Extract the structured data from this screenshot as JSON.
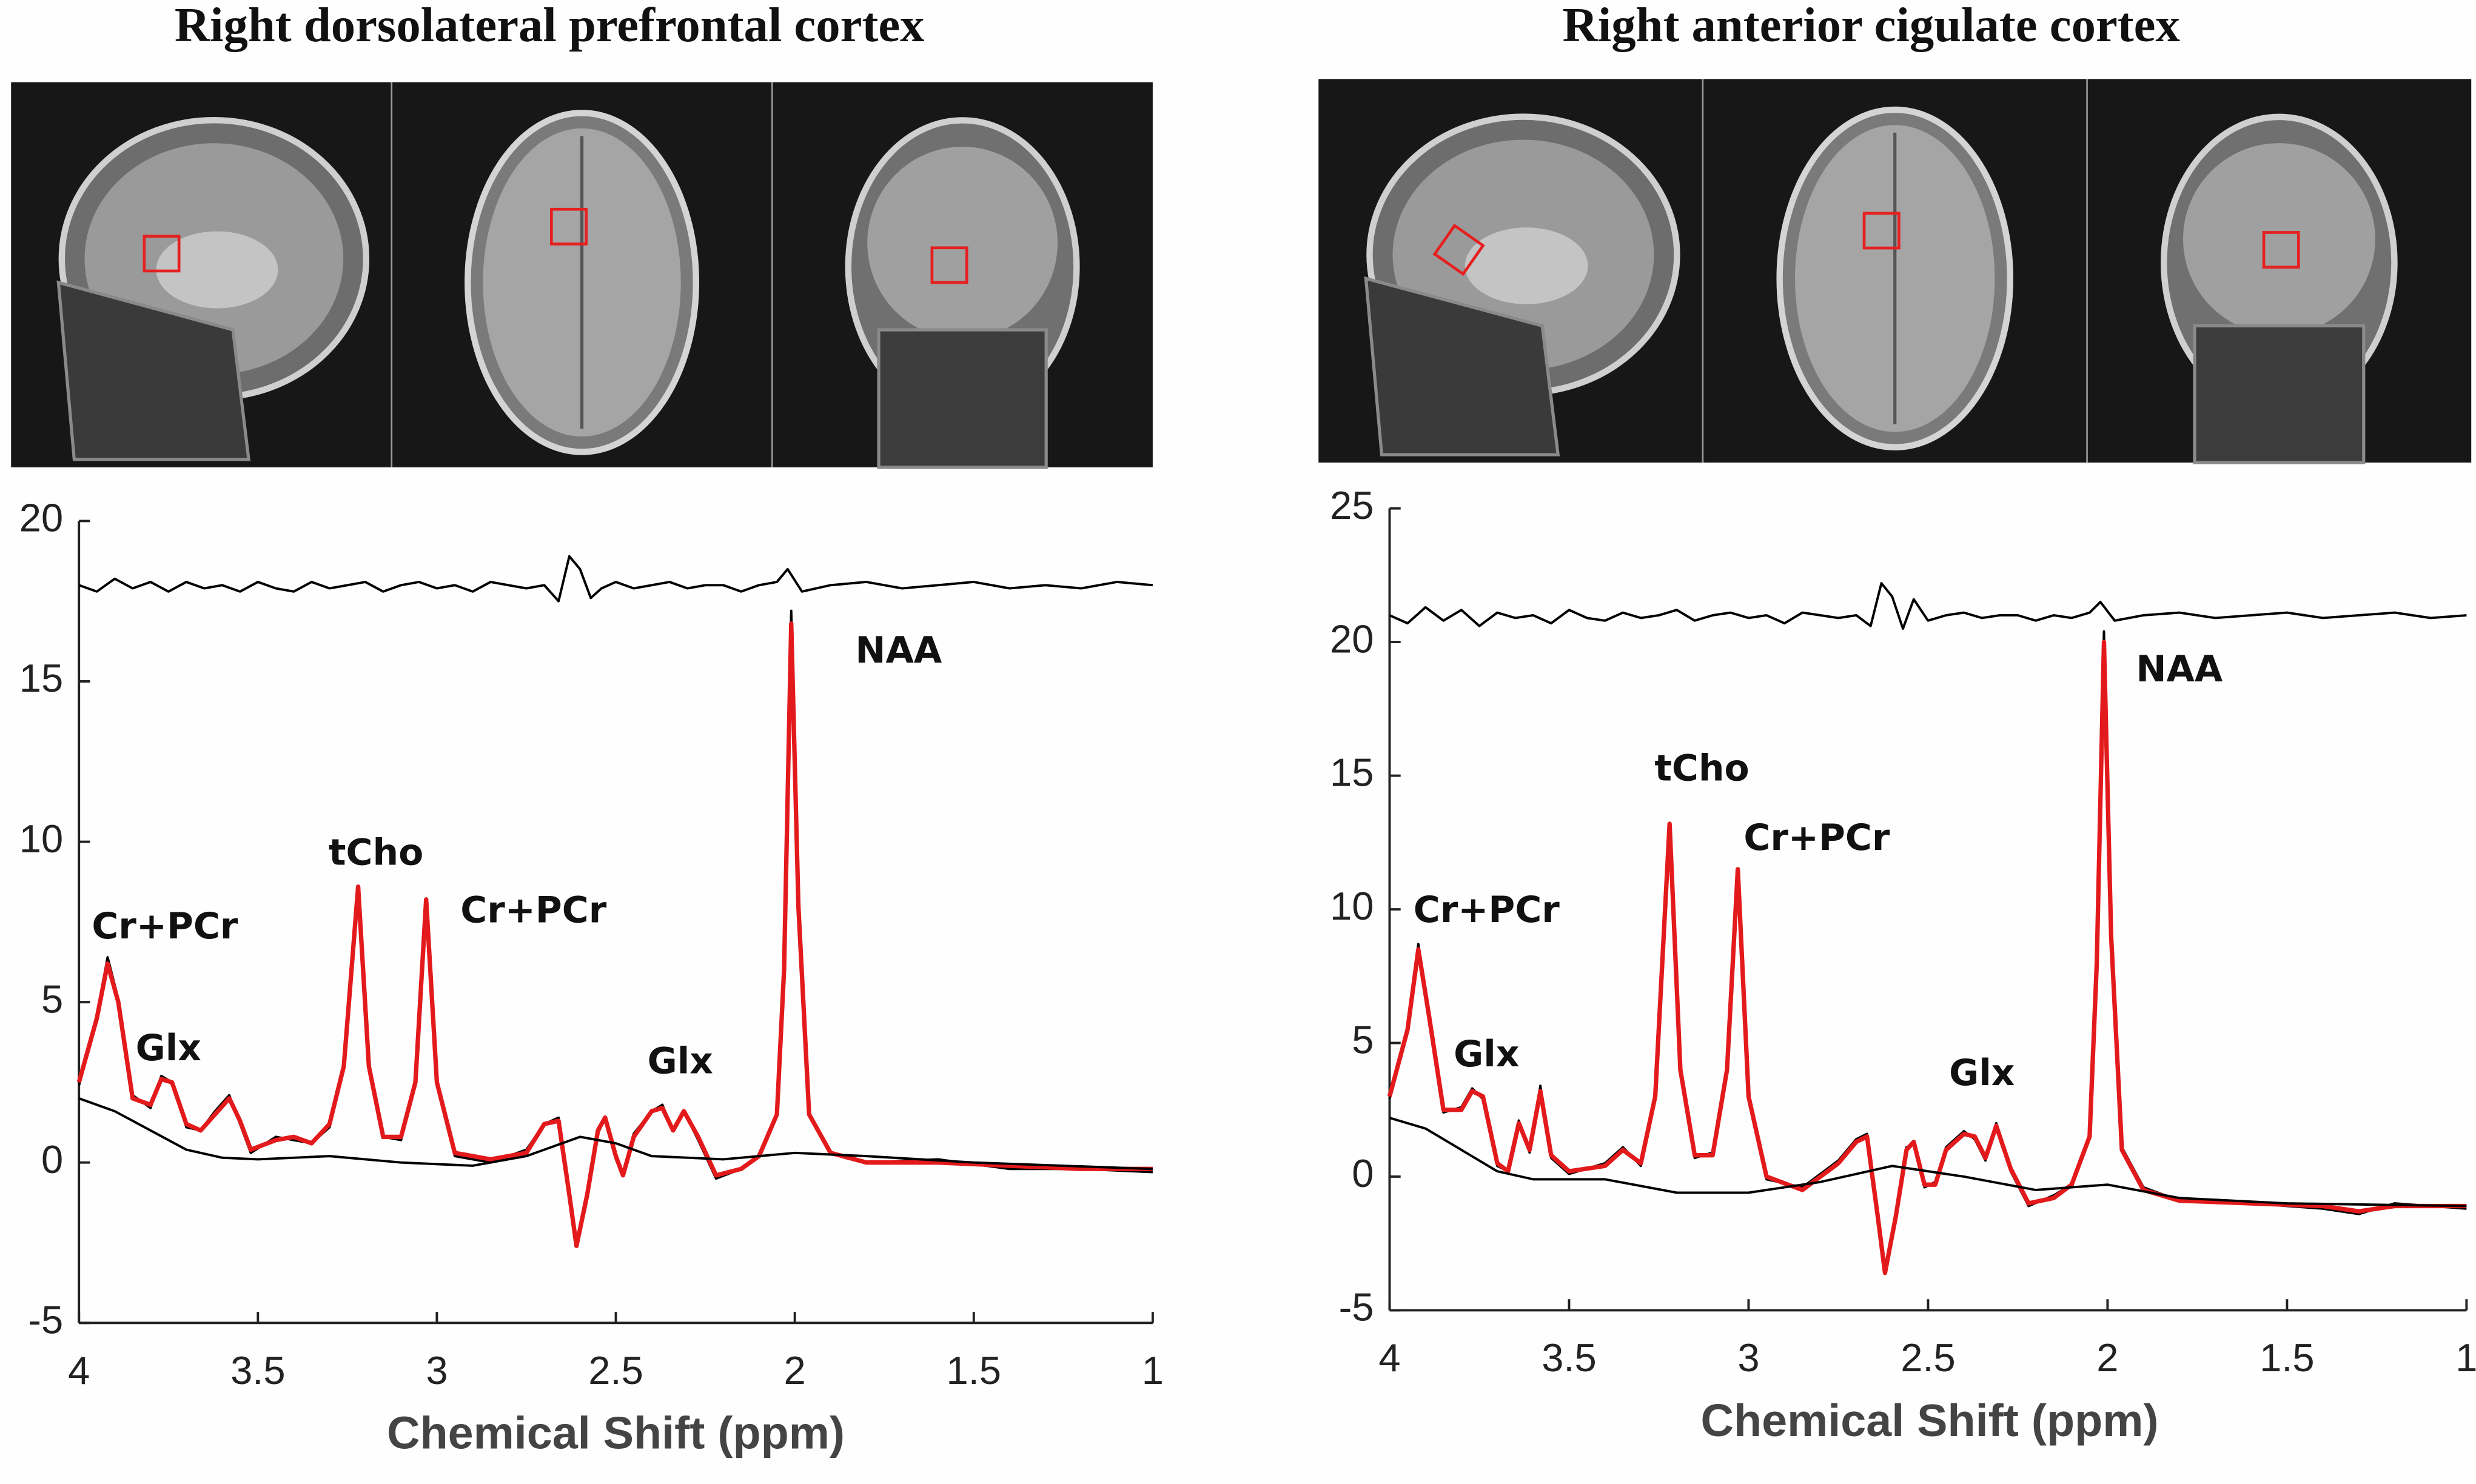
{
  "chart_data": [
    {
      "type": "line",
      "title": "Right dorsolateral prefrontal cortex",
      "xlabel": "Chemical Shift (ppm)",
      "xlim": [
        4,
        1
      ],
      "ylim": [
        -5,
        20
      ],
      "xticks": [
        4,
        3.5,
        3,
        2.5,
        2,
        1.5,
        1
      ],
      "yticks": [
        -5,
        0,
        5,
        10,
        15,
        20
      ],
      "series": [
        {
          "color": "#000000",
          "x": [
            4.0,
            3.95,
            3.92,
            3.89,
            3.85,
            3.8,
            3.77,
            3.74,
            3.7,
            3.66,
            3.62,
            3.58,
            3.55,
            3.52,
            3.45,
            3.4,
            3.35,
            3.3,
            3.26,
            3.22,
            3.19,
            3.15,
            3.1,
            3.06,
            3.03,
            3.0,
            2.95,
            2.85,
            2.75,
            2.7,
            2.66,
            2.63,
            2.61,
            2.58,
            2.55,
            2.53,
            2.5,
            2.48,
            2.45,
            2.4,
            2.37,
            2.34,
            2.31,
            2.27,
            2.22,
            2.15,
            2.1,
            2.05,
            2.03,
            2.01,
            1.99,
            1.96,
            1.9,
            1.8,
            1.6,
            1.4,
            1.2,
            1.0
          ],
          "values": [
            2.4,
            4.6,
            6.4,
            5.1,
            2.1,
            1.7,
            2.7,
            2.5,
            1.1,
            1.0,
            1.6,
            2.1,
            1.2,
            0.3,
            0.8,
            0.7,
            0.6,
            1.1,
            3.0,
            8.5,
            3.1,
            0.8,
            0.7,
            2.5,
            8.1,
            2.6,
            0.2,
            0.0,
            0.4,
            1.2,
            1.4,
            -1.1,
            -2.5,
            -1.0,
            0.9,
            1.4,
            0.1,
            -0.4,
            0.9,
            1.6,
            1.8,
            1.0,
            1.6,
            0.7,
            -0.5,
            -0.2,
            0.2,
            1.5,
            6.1,
            17.2,
            8.1,
            1.5,
            0.3,
            0.0,
            0.1,
            -0.2,
            -0.2,
            -0.3
          ]
        },
        {
          "color": "#e31a1c",
          "x": [
            4.0,
            3.95,
            3.92,
            3.89,
            3.85,
            3.8,
            3.77,
            3.74,
            3.7,
            3.66,
            3.62,
            3.58,
            3.55,
            3.52,
            3.45,
            3.4,
            3.35,
            3.3,
            3.26,
            3.22,
            3.19,
            3.15,
            3.1,
            3.06,
            3.03,
            3.0,
            2.95,
            2.85,
            2.75,
            2.7,
            2.66,
            2.63,
            2.61,
            2.58,
            2.55,
            2.53,
            2.5,
            2.48,
            2.45,
            2.4,
            2.37,
            2.34,
            2.31,
            2.27,
            2.22,
            2.15,
            2.1,
            2.05,
            2.03,
            2.01,
            1.99,
            1.96,
            1.9,
            1.8,
            1.6,
            1.4,
            1.2,
            1.0
          ],
          "values": [
            2.5,
            4.5,
            6.2,
            5.0,
            2.0,
            1.8,
            2.6,
            2.5,
            1.2,
            1.0,
            1.5,
            2.0,
            1.3,
            0.4,
            0.7,
            0.8,
            0.6,
            1.2,
            3.0,
            8.6,
            3.0,
            0.8,
            0.8,
            2.5,
            8.2,
            2.5,
            0.3,
            0.1,
            0.3,
            1.2,
            1.3,
            -1.0,
            -2.6,
            -1.0,
            1.0,
            1.4,
            0.2,
            -0.4,
            0.8,
            1.6,
            1.7,
            1.0,
            1.6,
            0.8,
            -0.4,
            -0.2,
            0.2,
            1.5,
            6.0,
            16.8,
            8.0,
            1.5,
            0.3,
            0.0,
            0.0,
            -0.1,
            -0.2,
            -0.2
          ]
        },
        {
          "color": "#000000",
          "x": [
            4.0,
            3.9,
            3.8,
            3.7,
            3.6,
            3.5,
            3.3,
            3.1,
            2.9,
            2.75,
            2.6,
            2.5,
            2.4,
            2.2,
            2.0,
            1.8,
            1.5,
            1.0
          ],
          "values": [
            2.0,
            1.6,
            1.0,
            0.4,
            0.15,
            0.1,
            0.2,
            0.0,
            -0.1,
            0.2,
            0.8,
            0.6,
            0.2,
            0.1,
            0.3,
            0.2,
            0.0,
            -0.2
          ]
        },
        {
          "color": "#000000",
          "x": [
            4.0,
            3.95,
            3.9,
            3.85,
            3.8,
            3.75,
            3.7,
            3.65,
            3.6,
            3.55,
            3.5,
            3.45,
            3.4,
            3.35,
            3.3,
            3.25,
            3.2,
            3.15,
            3.1,
            3.05,
            3.0,
            2.95,
            2.9,
            2.85,
            2.8,
            2.75,
            2.7,
            2.66,
            2.63,
            2.6,
            2.57,
            2.54,
            2.5,
            2.45,
            2.4,
            2.35,
            2.3,
            2.25,
            2.2,
            2.15,
            2.1,
            2.05,
            2.02,
            1.98,
            1.9,
            1.8,
            1.7,
            1.6,
            1.5,
            1.4,
            1.3,
            1.2,
            1.1,
            1.0
          ],
          "values": [
            18.0,
            17.8,
            18.2,
            17.9,
            18.1,
            17.8,
            18.1,
            17.9,
            18.0,
            17.8,
            18.1,
            17.9,
            17.8,
            18.1,
            17.9,
            18.0,
            18.1,
            17.8,
            18.0,
            18.1,
            17.9,
            18.0,
            17.8,
            18.1,
            18.0,
            17.9,
            18.0,
            17.5,
            18.9,
            18.5,
            17.6,
            17.9,
            18.1,
            17.9,
            18.0,
            18.1,
            17.9,
            18.0,
            18.0,
            17.8,
            18.0,
            18.1,
            18.5,
            17.8,
            18.0,
            18.1,
            17.9,
            18.0,
            18.1,
            17.9,
            18.0,
            17.9,
            18.1,
            18.0
          ]
        }
      ],
      "annotations": [
        {
          "text": "Cr+PCr",
          "x": 3.76,
          "y": 7.3
        },
        {
          "text": "Glx",
          "x": 3.75,
          "y": 3.5
        },
        {
          "text": "tCho",
          "x": 3.17,
          "y": 9.6
        },
        {
          "text": "Cr+PCr",
          "x": 2.73,
          "y": 7.8
        },
        {
          "text": "Glx",
          "x": 2.32,
          "y": 3.1
        },
        {
          "text": "NAA",
          "x": 1.71,
          "y": 15.9
        }
      ]
    },
    {
      "type": "line",
      "title": "Right anterior cigulate cortex",
      "xlabel": "Chemical Shift (ppm)",
      "xlim": [
        4,
        1
      ],
      "ylim": [
        -5,
        25
      ],
      "xticks": [
        4,
        3.5,
        3,
        2.5,
        2,
        1.5,
        1
      ],
      "yticks": [
        -5,
        0,
        5,
        10,
        15,
        20,
        25
      ],
      "series": [
        {
          "color": "#000000",
          "x": [
            4.0,
            3.95,
            3.92,
            3.89,
            3.85,
            3.8,
            3.77,
            3.74,
            3.7,
            3.67,
            3.64,
            3.61,
            3.58,
            3.55,
            3.5,
            3.4,
            3.35,
            3.3,
            3.26,
            3.22,
            3.19,
            3.15,
            3.1,
            3.06,
            3.03,
            3.0,
            2.95,
            2.85,
            2.75,
            2.7,
            2.67,
            2.64,
            2.62,
            2.59,
            2.56,
            2.54,
            2.51,
            2.48,
            2.45,
            2.4,
            2.37,
            2.34,
            2.31,
            2.27,
            2.22,
            2.15,
            2.1,
            2.05,
            2.03,
            2.01,
            1.99,
            1.96,
            1.9,
            1.8,
            1.6,
            1.4,
            1.3,
            1.2,
            1.0
          ],
          "values": [
            2.9,
            5.6,
            8.7,
            6.1,
            2.4,
            2.6,
            3.3,
            2.9,
            0.4,
            0.2,
            2.1,
            0.9,
            3.4,
            0.7,
            0.1,
            0.5,
            1.1,
            0.4,
            3.1,
            13.1,
            4.1,
            0.7,
            0.9,
            4.1,
            11.4,
            3.1,
            -0.1,
            -0.4,
            0.6,
            1.4,
            1.6,
            -1.4,
            -3.4,
            -1.6,
            1.1,
            1.2,
            -0.4,
            -0.2,
            1.1,
            1.7,
            1.4,
            0.6,
            2.0,
            0.2,
            -1.1,
            -0.7,
            -0.3,
            1.6,
            8.2,
            20.4,
            9.1,
            1.1,
            -0.4,
            -0.9,
            -1.0,
            -1.2,
            -1.4,
            -1.0,
            -1.2
          ]
        },
        {
          "color": "#e31a1c",
          "x": [
            4.0,
            3.95,
            3.92,
            3.89,
            3.85,
            3.8,
            3.77,
            3.74,
            3.7,
            3.67,
            3.64,
            3.61,
            3.58,
            3.55,
            3.5,
            3.4,
            3.35,
            3.3,
            3.26,
            3.22,
            3.19,
            3.15,
            3.1,
            3.06,
            3.03,
            3.0,
            2.95,
            2.85,
            2.75,
            2.7,
            2.67,
            2.64,
            2.62,
            2.59,
            2.56,
            2.54,
            2.51,
            2.48,
            2.45,
            2.4,
            2.37,
            2.34,
            2.31,
            2.27,
            2.22,
            2.15,
            2.1,
            2.05,
            2.03,
            2.01,
            1.99,
            1.96,
            1.9,
            1.8,
            1.6,
            1.4,
            1.3,
            1.2,
            1.0
          ],
          "values": [
            3.0,
            5.5,
            8.5,
            6.0,
            2.5,
            2.5,
            3.2,
            3.0,
            0.5,
            0.2,
            2.0,
            1.0,
            3.2,
            0.8,
            0.2,
            0.4,
            1.0,
            0.5,
            3.0,
            13.2,
            4.0,
            0.8,
            0.8,
            4.0,
            11.5,
            3.0,
            0.0,
            -0.5,
            0.5,
            1.3,
            1.5,
            -1.5,
            -3.6,
            -1.5,
            1.0,
            1.3,
            -0.3,
            -0.3,
            1.0,
            1.6,
            1.5,
            0.7,
            1.9,
            0.3,
            -1.0,
            -0.8,
            -0.3,
            1.5,
            8.0,
            20.0,
            9.0,
            1.0,
            -0.5,
            -0.9,
            -1.0,
            -1.1,
            -1.3,
            -1.1,
            -1.1
          ]
        },
        {
          "color": "#000000",
          "x": [
            4.0,
            3.9,
            3.8,
            3.7,
            3.6,
            3.4,
            3.2,
            3.0,
            2.8,
            2.6,
            2.4,
            2.2,
            2.0,
            1.8,
            1.5,
            1.0
          ],
          "values": [
            2.2,
            1.8,
            1.0,
            0.2,
            -0.1,
            -0.1,
            -0.6,
            -0.6,
            -0.2,
            0.4,
            0.0,
            -0.5,
            -0.3,
            -0.8,
            -1.0,
            -1.1
          ]
        },
        {
          "color": "#000000",
          "x": [
            4.0,
            3.95,
            3.9,
            3.85,
            3.8,
            3.75,
            3.7,
            3.65,
            3.6,
            3.55,
            3.5,
            3.45,
            3.4,
            3.35,
            3.3,
            3.25,
            3.2,
            3.15,
            3.1,
            3.05,
            3.0,
            2.95,
            2.9,
            2.85,
            2.8,
            2.75,
            2.7,
            2.66,
            2.63,
            2.6,
            2.57,
            2.54,
            2.5,
            2.45,
            2.4,
            2.35,
            2.3,
            2.25,
            2.2,
            2.15,
            2.1,
            2.05,
            2.02,
            1.98,
            1.9,
            1.8,
            1.7,
            1.6,
            1.5,
            1.4,
            1.3,
            1.2,
            1.1,
            1.0
          ],
          "values": [
            21.0,
            20.7,
            21.3,
            20.8,
            21.2,
            20.6,
            21.1,
            20.9,
            21.0,
            20.7,
            21.2,
            20.9,
            20.8,
            21.1,
            20.9,
            21.0,
            21.2,
            20.8,
            21.0,
            21.1,
            20.9,
            21.0,
            20.7,
            21.1,
            21.0,
            20.9,
            21.0,
            20.6,
            22.2,
            21.7,
            20.5,
            21.6,
            20.8,
            21.0,
            21.1,
            20.9,
            21.0,
            21.0,
            20.8,
            21.0,
            20.9,
            21.1,
            21.5,
            20.8,
            21.0,
            21.1,
            20.9,
            21.0,
            21.1,
            20.9,
            21.0,
            21.1,
            20.9,
            21.0
          ]
        }
      ],
      "annotations": [
        {
          "text": "Cr+PCr",
          "x": 3.73,
          "y": 9.9
        },
        {
          "text": "Glx",
          "x": 3.73,
          "y": 4.5
        },
        {
          "text": "tCho",
          "x": 3.13,
          "y": 15.2
        },
        {
          "text": "Cr+PCr",
          "x": 2.81,
          "y": 12.6
        },
        {
          "text": "Glx",
          "x": 2.35,
          "y": 3.8
        },
        {
          "text": "NAA",
          "x": 1.8,
          "y": 18.9
        }
      ]
    }
  ]
}
